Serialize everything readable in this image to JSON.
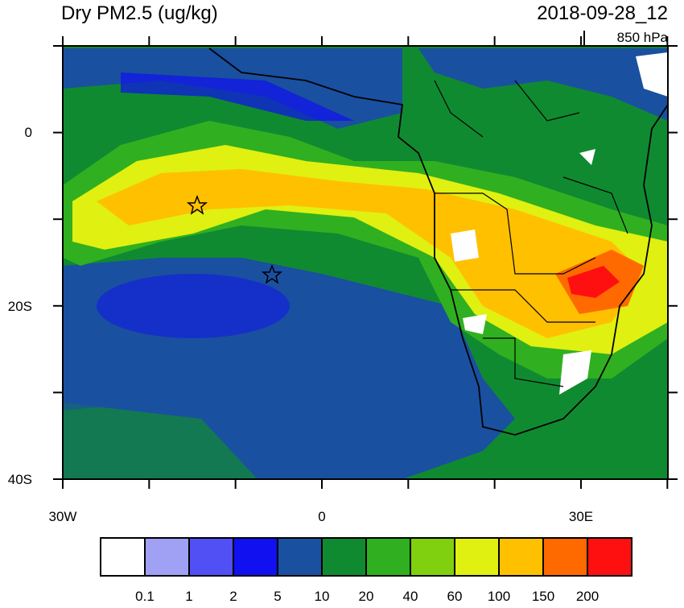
{
  "header": {
    "title": "Dry PM2.5 (ug/kg)",
    "date": "2018-09-28_12",
    "level": "850 hPa"
  },
  "axes": {
    "y_labels": [
      "0",
      "20S",
      "40S"
    ],
    "x_labels": [
      "30W",
      "0",
      "30E"
    ]
  },
  "colorbar": {
    "levels": [
      0.1,
      1,
      2,
      5,
      10,
      20,
      40,
      60,
      100,
      150,
      200
    ],
    "colors": [
      "#ffffff",
      "#a0a0f4",
      "#5050f4",
      "#1010f0",
      "#1a50a0",
      "#108a30",
      "#30b020",
      "#80d010",
      "#e0f010",
      "#ffc000",
      "#ff6a00",
      "#ff1010"
    ]
  }
}
